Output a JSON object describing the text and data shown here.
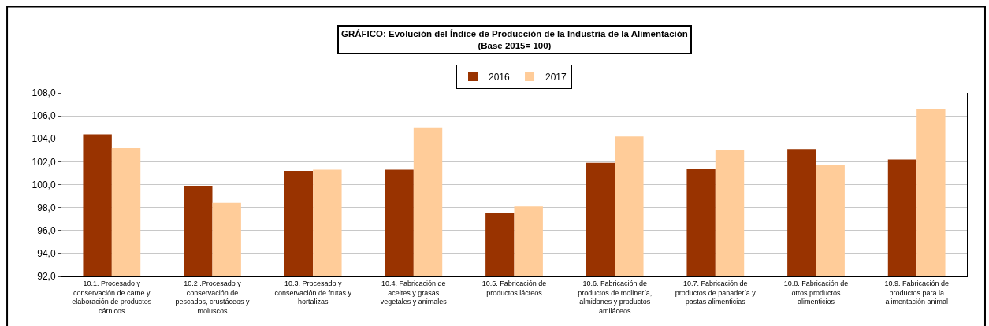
{
  "chart_data": {
    "type": "bar",
    "title": "GRÁFICO: Evolución del Índice de Producción de la Industria de la Alimentación",
    "subtitle": "(Base 2015= 100)",
    "categories": [
      "10.1. Procesado y conservación de carne y elaboración de productos cárnicos",
      "10.2 .Procesado y conservación de pescados, crustáceos y moluscos",
      "10.3. Procesado y conservación de frutas y hortalizas",
      "10.4. Fabricación de aceites y grasas vegetales y animales",
      "10.5. Fabricación de productos lácteos",
      "10.6. Fabricación de productos de molinería, almidones y productos amiláceos",
      "10.7. Fabricación de productos de panadería y pastas alimenticias",
      "10.8. Fabricación de otros productos alimenticios",
      "10.9. Fabricación de productos para la alimentación animal"
    ],
    "series": [
      {
        "name": "2016",
        "color": "#993300",
        "values": [
          104.4,
          99.9,
          101.2,
          101.3,
          97.5,
          101.9,
          101.4,
          103.1,
          102.2
        ]
      },
      {
        "name": "2017",
        "color": "#ffcc99",
        "values": [
          103.2,
          98.4,
          101.3,
          105.0,
          98.1,
          104.2,
          103.0,
          101.7,
          106.6
        ]
      }
    ],
    "ylim": [
      92,
      108
    ],
    "yticks": [
      {
        "value": 92,
        "label": "92,0"
      },
      {
        "value": 94,
        "label": "94,0"
      },
      {
        "value": 96,
        "label": "96,0"
      },
      {
        "value": 98,
        "label": "98,0"
      },
      {
        "value": 100,
        "label": "100,0"
      },
      {
        "value": 102,
        "label": "102,0"
      },
      {
        "value": 104,
        "label": "104,0"
      },
      {
        "value": 106,
        "label": "106,0"
      },
      {
        "value": 108,
        "label": "108,0"
      }
    ],
    "grid": "y",
    "legend": "top"
  }
}
